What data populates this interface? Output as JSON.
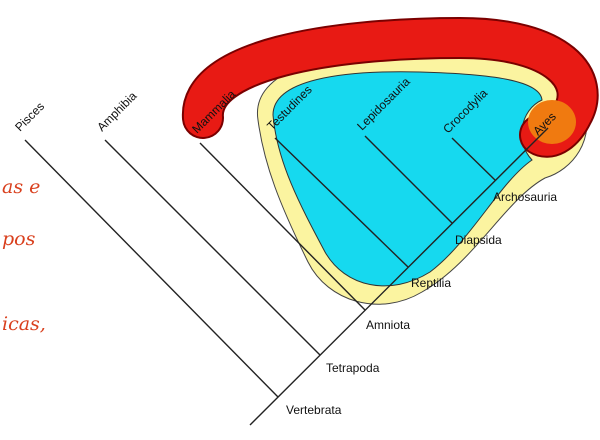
{
  "taxa": [
    "Pisces",
    "Amphibia",
    "Mammalia",
    "Testudines",
    "Lepidosauria",
    "Crocodylia",
    "Aves"
  ],
  "nodes": [
    "Vertebrata",
    "Tetrapoda",
    "Amniota",
    "Reptilia",
    "Diapsida",
    "Archosauria"
  ],
  "text_fragments": [
    "as e",
    "pos",
    "icas,"
  ]
}
